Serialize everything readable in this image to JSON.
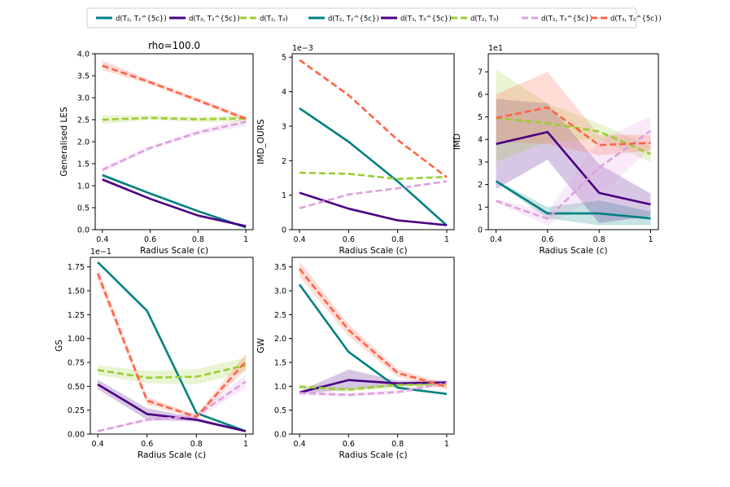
{
  "legend": {
    "location": "top-center",
    "entries": [
      {
        "key": "s1",
        "label": "d(T₂, T₂^{5c})"
      },
      {
        "key": "s2",
        "label": "d(T₃, T₃^{5c})"
      },
      {
        "key": "s3",
        "label": "d(T₂, T₃)"
      },
      {
        "key": "s1",
        "label": "d(T₂, T₂^{5c})"
      },
      {
        "key": "s2",
        "label": "d(T₃, T₃^{5c})"
      },
      {
        "key": "s3",
        "label": "d(T₂, T₃)"
      },
      {
        "key": "s4",
        "label": "d(T₂, T₃^{5c})"
      },
      {
        "key": "s5",
        "label": "d(T₃, T₂^{5c})"
      }
    ]
  },
  "styles": {
    "s1": {
      "color": "#008080",
      "dash": "solid"
    },
    "s2": {
      "color": "#4B0082",
      "dash": "solid"
    },
    "s3": {
      "color": "#9ACD32",
      "dash": "dashed"
    },
    "s4": {
      "color": "#DDA0DD",
      "dash": "dashed"
    },
    "s5": {
      "color": "#FF6347",
      "dash": "dashed"
    }
  },
  "chart_data": [
    {
      "type": "line",
      "title": "rho=100.0",
      "xlabel": "Radius Scale (c)",
      "ylabel": "Generalised LES",
      "offset_label": "",
      "x": [
        0.4,
        0.6,
        0.8,
        1.0
      ],
      "xlim": [
        0.37,
        1.03
      ],
      "ylim": [
        0,
        4.0
      ],
      "xticks": [
        0.4,
        0.6,
        0.8,
        1.0
      ],
      "xtick_labels": [
        "0.4",
        "0.6",
        "0.8",
        "1"
      ],
      "yticks": [
        0,
        0.5,
        1.0,
        1.5,
        2.0,
        2.5,
        3.0,
        3.5,
        4.0
      ],
      "ytick_labels": [
        "0.0",
        "0.5",
        "1.0",
        "1.5",
        "2.0",
        "2.5",
        "3.0",
        "3.5",
        "4.0"
      ],
      "series": [
        {
          "key": "s1",
          "values": [
            1.24,
            0.82,
            0.42,
            0.05
          ],
          "lower": [
            1.2,
            0.8,
            0.4,
            0.04
          ],
          "upper": [
            1.28,
            0.85,
            0.44,
            0.06
          ]
        },
        {
          "key": "s2",
          "values": [
            1.14,
            0.7,
            0.32,
            0.08
          ],
          "lower": [
            1.1,
            0.68,
            0.3,
            0.06
          ],
          "upper": [
            1.18,
            0.72,
            0.34,
            0.1
          ]
        },
        {
          "key": "s3",
          "values": [
            2.5,
            2.54,
            2.51,
            2.53
          ],
          "lower": [
            2.4,
            2.5,
            2.45,
            2.45
          ],
          "upper": [
            2.6,
            2.6,
            2.57,
            2.6
          ]
        },
        {
          "key": "s4",
          "values": [
            1.36,
            1.86,
            2.21,
            2.45
          ],
          "lower": [
            1.3,
            1.82,
            2.16,
            2.35
          ],
          "upper": [
            1.42,
            1.9,
            2.26,
            2.55
          ]
        },
        {
          "key": "s5",
          "values": [
            3.73,
            3.35,
            2.94,
            2.52
          ],
          "lower": [
            3.63,
            3.3,
            2.89,
            2.47
          ],
          "upper": [
            3.85,
            3.4,
            2.99,
            2.57
          ]
        }
      ]
    },
    {
      "type": "line",
      "title": "",
      "xlabel": "Radius Scale (c)",
      "ylabel": "IMD_OURS",
      "offset_label": "1e−3",
      "x": [
        0.4,
        0.6,
        0.8,
        1.0
      ],
      "xlim": [
        0.37,
        1.03
      ],
      "ylim": [
        0,
        5.1
      ],
      "xticks": [
        0.4,
        0.6,
        0.8,
        1.0
      ],
      "xtick_labels": [
        "0.4",
        "0.6",
        "0.8",
        "1"
      ],
      "yticks": [
        0,
        1,
        2,
        3,
        4,
        5
      ],
      "ytick_labels": [
        "0",
        "1",
        "2",
        "3",
        "4",
        "5"
      ],
      "series": [
        {
          "key": "s1",
          "values": [
            3.52,
            2.55,
            1.4,
            0.12
          ]
        },
        {
          "key": "s2",
          "values": [
            1.07,
            0.61,
            0.27,
            0.13
          ]
        },
        {
          "key": "s3",
          "values": [
            1.65,
            1.62,
            1.47,
            1.53
          ]
        },
        {
          "key": "s4",
          "values": [
            0.62,
            1.02,
            1.2,
            1.4
          ]
        },
        {
          "key": "s5",
          "values": [
            4.92,
            3.9,
            2.6,
            1.52
          ]
        }
      ]
    },
    {
      "type": "line",
      "title": "",
      "xlabel": "Radius Scale (c)",
      "ylabel": "IMD",
      "offset_label": "1e1",
      "x": [
        0.4,
        0.6,
        0.8,
        1.0
      ],
      "xlim": [
        0.37,
        1.03
      ],
      "ylim": [
        0,
        7.8
      ],
      "xticks": [
        0.4,
        0.6,
        0.8,
        1.0
      ],
      "xtick_labels": [
        "0.4",
        "0.6",
        "0.8",
        "1"
      ],
      "yticks": [
        0,
        1,
        2,
        3,
        4,
        5,
        6,
        7
      ],
      "ytick_labels": [
        "0",
        "1",
        "2",
        "3",
        "4",
        "5",
        "6",
        "7"
      ],
      "series": [
        {
          "key": "s1",
          "values": [
            2.15,
            0.72,
            0.72,
            0.5
          ],
          "lower": [
            2.1,
            0.5,
            0.2,
            0.2
          ],
          "upper": [
            2.2,
            1.0,
            1.3,
            0.8
          ]
        },
        {
          "key": "s2",
          "values": [
            3.8,
            4.33,
            1.63,
            1.12
          ],
          "lower": [
            1.8,
            3.1,
            0.3,
            0.6
          ],
          "upper": [
            5.8,
            5.6,
            2.9,
            1.6
          ]
        },
        {
          "key": "s3",
          "values": [
            4.95,
            4.72,
            4.35,
            3.35
          ],
          "lower": [
            3.0,
            3.9,
            4.0,
            3.0
          ],
          "upper": [
            7.1,
            5.6,
            4.7,
            3.7
          ]
        },
        {
          "key": "s4",
          "values": [
            1.28,
            0.48,
            2.75,
            4.38
          ],
          "lower": [
            1.2,
            0.2,
            1.5,
            3.6
          ],
          "upper": [
            1.35,
            0.8,
            4.0,
            5.0
          ]
        },
        {
          "key": "s5",
          "values": [
            4.95,
            5.42,
            3.75,
            3.85
          ],
          "lower": [
            3.9,
            3.8,
            3.3,
            3.5
          ],
          "upper": [
            6.0,
            7.0,
            4.2,
            4.2
          ]
        }
      ]
    },
    {
      "type": "line",
      "title": "",
      "xlabel": "Radius Scale (c)",
      "ylabel": "GS",
      "offset_label": "1e−1",
      "x": [
        0.4,
        0.6,
        0.8,
        1.0
      ],
      "xlim": [
        0.37,
        1.03
      ],
      "ylim": [
        0,
        1.85
      ],
      "xticks": [
        0.4,
        0.6,
        0.8,
        1.0
      ],
      "xtick_labels": [
        "0.4",
        "0.6",
        "0.8",
        "1"
      ],
      "yticks": [
        0,
        0.25,
        0.5,
        0.75,
        1.0,
        1.25,
        1.5,
        1.75
      ],
      "ytick_labels": [
        "0.00",
        "0.25",
        "0.50",
        "0.75",
        "1.00",
        "1.25",
        "1.50",
        "1.75"
      ],
      "series": [
        {
          "key": "s1",
          "values": [
            1.8,
            1.29,
            0.22,
            0.03
          ]
        },
        {
          "key": "s2",
          "values": [
            0.52,
            0.21,
            0.15,
            0.03
          ],
          "lower": [
            0.47,
            0.15,
            0.13,
            0.02
          ],
          "upper": [
            0.57,
            0.27,
            0.17,
            0.04
          ]
        },
        {
          "key": "s3",
          "values": [
            0.67,
            0.59,
            0.6,
            0.72
          ],
          "lower": [
            0.62,
            0.53,
            0.52,
            0.65
          ],
          "upper": [
            0.72,
            0.66,
            0.68,
            0.8
          ]
        },
        {
          "key": "s4",
          "values": [
            0.03,
            0.15,
            0.19,
            0.55
          ],
          "lower": [
            0.02,
            0.13,
            0.16,
            0.48
          ],
          "upper": [
            0.04,
            0.17,
            0.22,
            0.62
          ]
        },
        {
          "key": "s5",
          "values": [
            1.68,
            0.35,
            0.18,
            0.76
          ],
          "lower": [
            1.62,
            0.31,
            0.16,
            0.68
          ],
          "upper": [
            1.74,
            0.39,
            0.2,
            0.84
          ]
        }
      ]
    },
    {
      "type": "line",
      "title": "",
      "xlabel": "Radius Scale (c)",
      "ylabel": "GW",
      "offset_label": "",
      "x": [
        0.4,
        0.6,
        0.8,
        1.0
      ],
      "xlim": [
        0.37,
        1.03
      ],
      "ylim": [
        0,
        3.7
      ],
      "xticks": [
        0.4,
        0.6,
        0.8,
        1.0
      ],
      "xtick_labels": [
        "0.4",
        "0.6",
        "0.8",
        "1"
      ],
      "yticks": [
        0,
        0.5,
        1.0,
        1.5,
        2.0,
        2.5,
        3.0,
        3.5
      ],
      "ytick_labels": [
        "0.0",
        "0.5",
        "1.0",
        "1.5",
        "2.0",
        "2.5",
        "3.0",
        "3.5"
      ],
      "series": [
        {
          "key": "s1",
          "values": [
            3.13,
            1.72,
            0.97,
            0.84
          ]
        },
        {
          "key": "s2",
          "values": [
            0.87,
            1.13,
            1.06,
            1.08
          ],
          "lower": [
            0.84,
            0.93,
            1.0,
            1.04
          ],
          "upper": [
            0.9,
            1.35,
            1.12,
            1.12
          ]
        },
        {
          "key": "s3",
          "values": [
            0.99,
            0.93,
            1.03,
            1.04
          ],
          "lower": [
            0.94,
            0.88,
            0.98,
            0.99
          ],
          "upper": [
            1.04,
            0.98,
            1.08,
            1.09
          ]
        },
        {
          "key": "s4",
          "values": [
            0.86,
            0.82,
            0.88,
            1.07
          ],
          "lower": [
            0.82,
            0.78,
            0.84,
            1.03
          ],
          "upper": [
            0.9,
            0.86,
            0.92,
            1.11
          ]
        },
        {
          "key": "s5",
          "values": [
            3.46,
            2.18,
            1.28,
            0.99
          ],
          "lower": [
            3.3,
            2.05,
            1.2,
            0.93
          ],
          "upper": [
            3.62,
            2.3,
            1.36,
            1.05
          ]
        }
      ]
    }
  ]
}
